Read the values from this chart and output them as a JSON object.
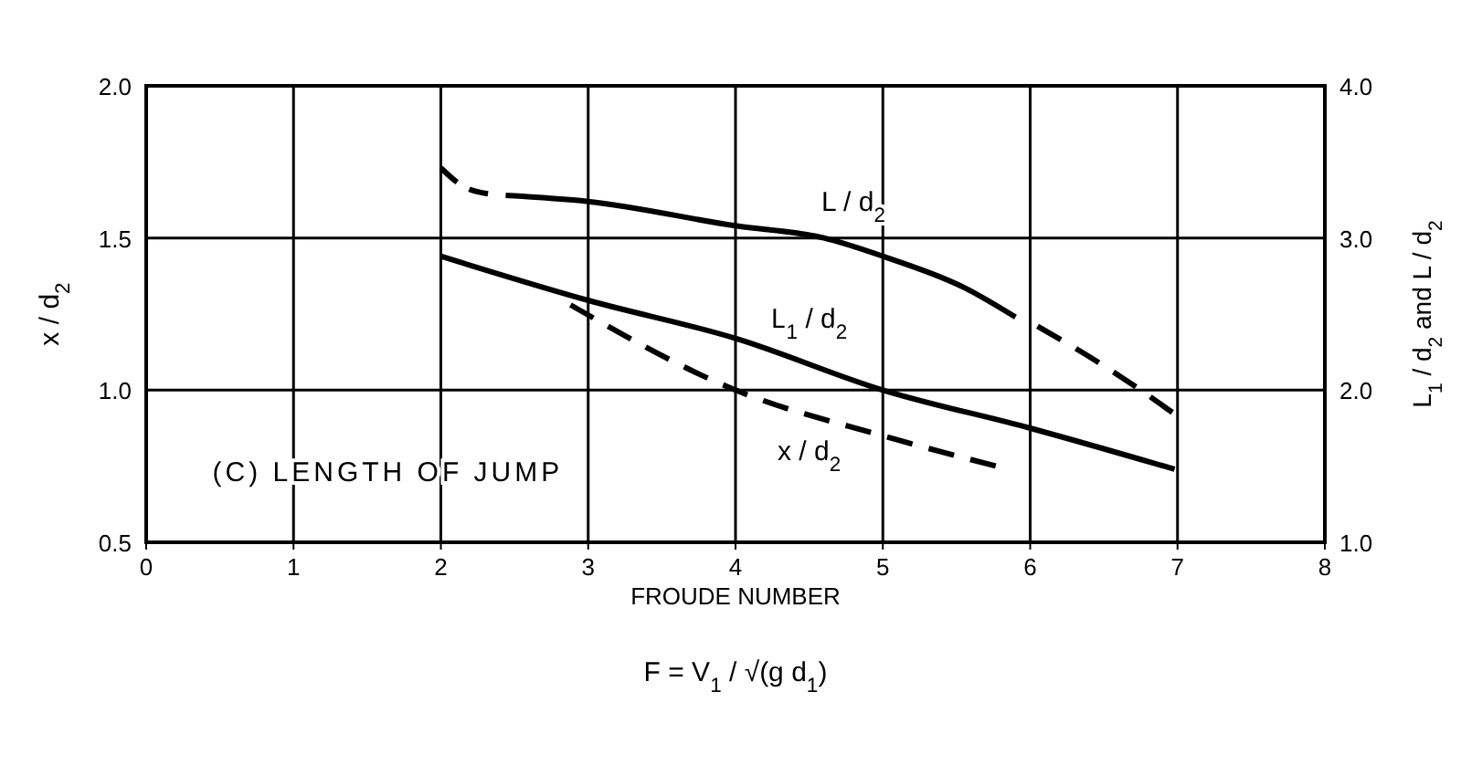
{
  "chart_data": {
    "type": "line",
    "xlabel": "FROUDE NUMBER",
    "ylabel": "x / d$_{2}$",
    "y2label": "L$_{1}$ / d$_{2}$ and L / d$_{2}$",
    "xlim": [
      0,
      8
    ],
    "xticks": [
      0,
      1,
      2,
      3,
      4,
      5,
      6,
      7,
      8
    ],
    "ylim": [
      0.5,
      2.0
    ],
    "yticks": [
      0.5,
      {
        "value": 1,
        "label": "1.0"
      },
      1.5,
      {
        "value": 2,
        "label": "2.0"
      }
    ],
    "y2lim": [
      1,
      4
    ],
    "y2ticks": [
      {
        "value": 1,
        "label": "1.0"
      },
      {
        "value": 2,
        "label": "2.0"
      },
      {
        "value": 3,
        "label": "3.0"
      },
      {
        "value": 4,
        "label": "4.0"
      }
    ],
    "grid": true,
    "series": [
      {
        "color": "#000000",
        "axis": "y2",
        "line_style": "dashed",
        "x": [
          2.0,
          2.15,
          2.32
        ],
        "values": [
          3.46,
          3.34,
          3.29
        ]
      },
      {
        "name": "L / d$_{2}$",
        "color": "#000000",
        "axis": "y2",
        "line_style": "solid",
        "x": [
          2.44,
          3.0,
          4.0,
          4.6,
          5.0,
          5.56,
          5.9
        ],
        "values": [
          3.28,
          3.24,
          3.08,
          3.0,
          2.88,
          2.67,
          2.48
        ]
      },
      {
        "color": "#000000",
        "axis": "y2",
        "line_style": "dashed",
        "x": [
          6.05,
          6.5,
          6.78,
          6.97
        ],
        "values": [
          2.42,
          2.16,
          1.98,
          1.85
        ]
      },
      {
        "name": "L$_{1}$ / d$_{2}$",
        "color": "#000000",
        "axis": "y2",
        "line_style": "solid",
        "x": [
          2.0,
          3.0,
          4.0,
          5.0,
          6.0,
          6.98
        ],
        "values": [
          2.88,
          2.59,
          2.34,
          2.0,
          1.75,
          1.48
        ]
      },
      {
        "name": "x / d$_{2}$",
        "color": "#000000",
        "line_style": "dashed",
        "x": [
          2.88,
          4.0,
          5.0,
          5.77
        ],
        "values": [
          1.28,
          1.0,
          0.85,
          0.75
        ]
      }
    ],
    "annotations": [
      "(C)  LENGTH OF JUMP",
      "F = V$_{1}$ / √(g d$_{1}$)"
    ]
  }
}
